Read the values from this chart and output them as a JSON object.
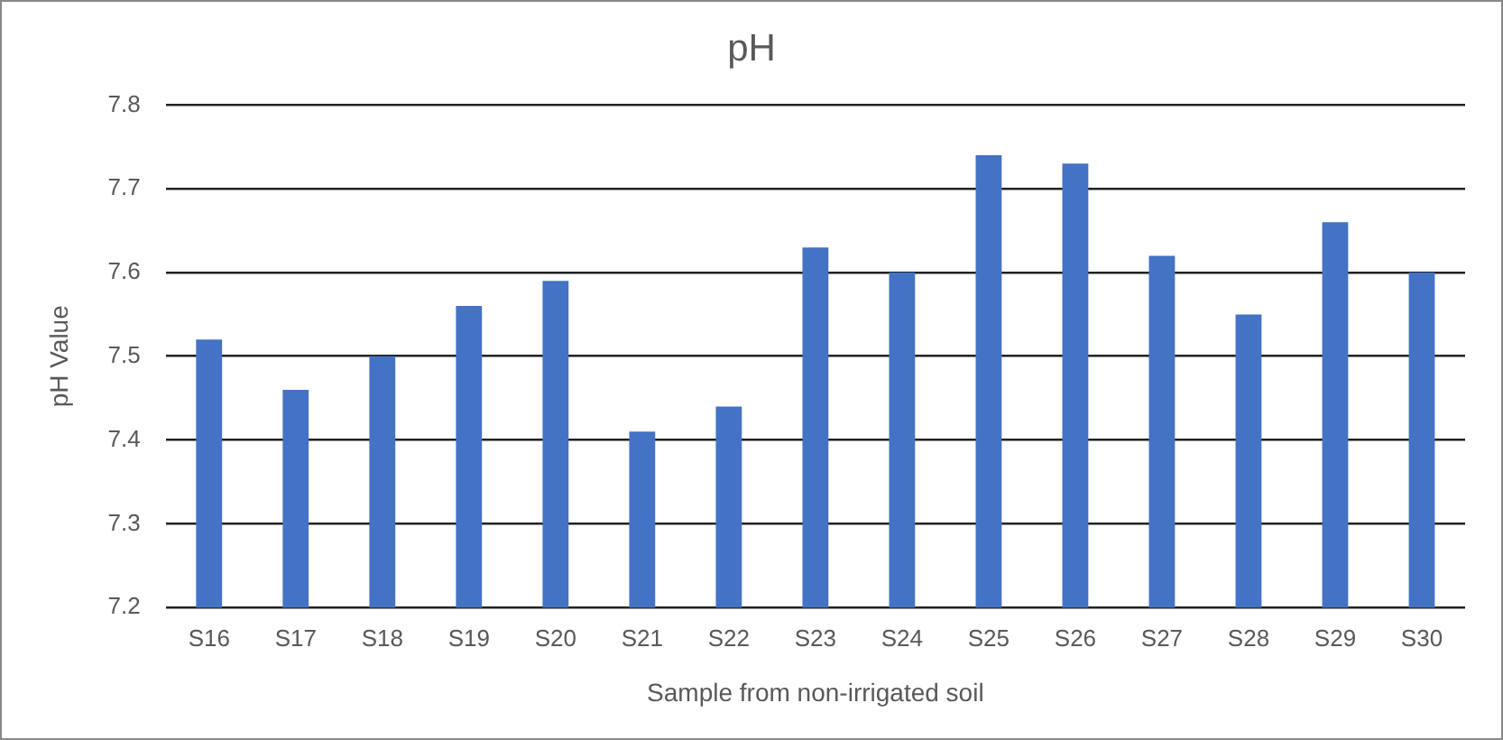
{
  "chart_data": {
    "type": "bar",
    "title": "pH",
    "xlabel": "Sample from non-irrigated soil",
    "ylabel": "pH Value",
    "categories": [
      "S16",
      "S17",
      "S18",
      "S19",
      "S20",
      "S21",
      "S22",
      "S23",
      "S24",
      "S25",
      "S26",
      "S27",
      "S28",
      "S29",
      "S30"
    ],
    "values": [
      7.52,
      7.46,
      7.5,
      7.56,
      7.59,
      7.41,
      7.44,
      7.63,
      7.6,
      7.74,
      7.73,
      7.62,
      7.55,
      7.66,
      7.6
    ],
    "color": "#4472c4",
    "ylim": [
      7.2,
      7.8
    ],
    "yticks": [
      7.2,
      7.3,
      7.4,
      7.5,
      7.6,
      7.7,
      7.8
    ],
    "grid": "y",
    "legend": false
  }
}
